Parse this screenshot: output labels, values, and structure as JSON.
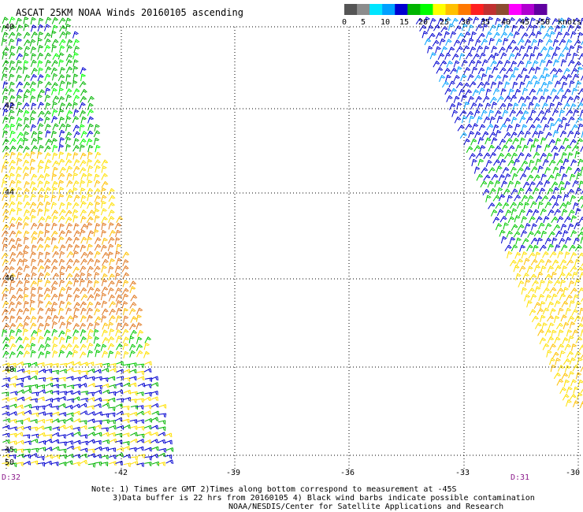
{
  "header": {
    "title": "ASCAT 25KM NOAA Winds 20160105 ascending"
  },
  "legend": {
    "unit": "knots",
    "ticks": [
      "0",
      "5",
      "10",
      "15",
      "20",
      "25",
      "30",
      "35",
      "40",
      "45",
      ">50"
    ],
    "colors": [
      "#555555",
      "#8c8c8c",
      "#00e5ff",
      "#00a0ff",
      "#0000d0",
      "#00b400",
      "#00ff00",
      "#ffff00",
      "#ffc000",
      "#ff7800",
      "#ff2020",
      "#c03030",
      "#8c4c30",
      "#ff00ff",
      "#b000d0",
      "#6000a0"
    ]
  },
  "axes": {
    "x_labels": [
      "-42",
      "-39",
      "-36",
      "-33",
      "-30"
    ],
    "y_labels": [
      "40",
      "42",
      "44",
      "46",
      "48",
      "50"
    ],
    "y_extra": "-45"
  },
  "passes": {
    "left_time": "D:32",
    "right_time": "D:31"
  },
  "footer": {
    "line1": "Note: 1) Times are GMT 2)Times along bottom correspond to measurement at -45S",
    "line2": "3)Data buffer is 22 hrs from 20160105 4) Black wind barbs indicate possible contamination",
    "line3": "NOAA/NESDIS/Center for Satellite Applications and Research"
  }
}
